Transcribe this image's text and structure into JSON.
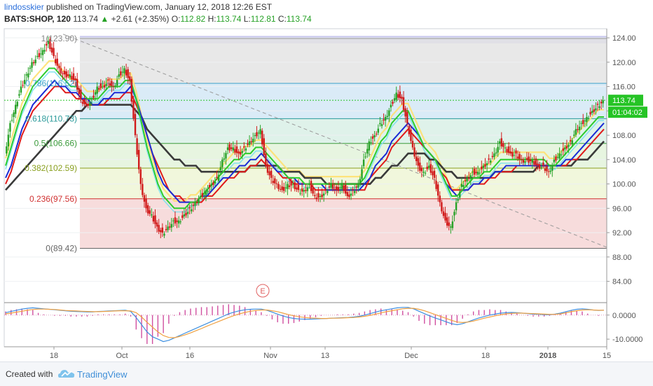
{
  "header": {
    "author": "lindosskier",
    "published_text": "published on TradingView.com, January 12, 2018 12:26 EST",
    "symbol": "BATS:SHOP, 120",
    "last": "113.74",
    "change": "+2.61 (+2.35%)",
    "o_label": "O:",
    "o_value": "112.82",
    "h_label": "H:",
    "h_value": "113.74",
    "l_label": "L:",
    "l_value": "112.81",
    "c_label": "C:",
    "c_value": "113.74"
  },
  "footer": {
    "created_with": "Created with",
    "brand": "TradingView"
  },
  "colors": {
    "up": "#26a126",
    "down": "#d11a1a",
    "ema_fast": "#2ecc2e",
    "ema_mid": "#1a2bd6",
    "ema_slow": "#e01b1b",
    "sma_long": "#3a3a3a",
    "ema_yellow": "#ffe070",
    "ema_cyan": "#7ee0f0"
  },
  "chart_data": [
    {
      "type": "candlestick",
      "price_axis": {
        "ylim": [
          80.5,
          125.5
        ],
        "ticks": [
          "124.00",
          "120.00",
          "116.00",
          "112.00",
          "108.00",
          "104.00",
          "100.00",
          "96.00",
          "92.00",
          "88.00",
          "84.00"
        ]
      },
      "time_axis": {
        "ticks": [
          "18",
          "Oct",
          "16",
          "Nov",
          "13",
          "Dec",
          "18",
          "2018",
          "15"
        ]
      },
      "last_price_label": "113.74",
      "countdown_label": "01:04:02",
      "earnings_marker": "E",
      "fibonacci": [
        {
          "label": "1(123.90)",
          "price": 123.9,
          "fill": "#dcdcdc"
        },
        {
          "label": "0.786(116.52)",
          "price": 116.52,
          "fill": "#cfe6f5",
          "color": "#3aa0c8"
        },
        {
          "label": "0.618(110.73)",
          "price": 110.73,
          "fill": "#d8efe8",
          "color": "#2a9a9a"
        },
        {
          "label": "0.5(106.66)",
          "price": 106.66,
          "fill": "#def2d8",
          "color": "#3a9a3a"
        },
        {
          "label": "0.382(102.59)",
          "price": 102.59,
          "fill": "#eef6d6",
          "color": "#8aa020"
        },
        {
          "label": "0.236(97.56)",
          "price": 97.56,
          "fill": "#f6d6d6",
          "color": "#d03030"
        },
        {
          "label": "0(89.42)",
          "price": 89.42,
          "color": "#666"
        }
      ],
      "trendline": {
        "from_price": 124.6,
        "to_price": 89.6
      },
      "close_path": [
        105,
        110,
        113,
        116,
        118,
        120,
        121,
        122,
        123.5,
        121,
        119,
        118,
        118,
        117,
        114,
        113,
        114,
        116,
        116,
        117,
        116,
        118,
        119,
        117,
        108,
        100,
        96,
        95,
        93,
        92,
        93,
        94,
        94,
        95,
        96,
        97,
        98,
        99,
        100,
        101,
        104,
        106,
        106,
        105,
        106,
        107,
        108,
        109,
        103,
        101,
        100,
        99,
        100,
        100,
        99,
        99,
        100,
        98,
        98,
        99,
        100,
        99,
        100,
        98,
        99,
        100,
        104,
        107,
        108,
        110,
        111,
        113,
        115,
        114,
        110,
        106,
        103,
        102,
        103,
        101,
        97,
        94,
        93,
        97,
        100,
        101,
        102,
        102,
        103,
        104,
        105,
        107,
        106,
        105,
        105,
        104,
        104,
        104,
        103,
        103,
        102,
        104,
        105,
        106,
        107,
        109,
        110,
        111,
        112,
        113,
        113.74
      ],
      "ema_fast": [
        103,
        106,
        109,
        112,
        114,
        116,
        117,
        118,
        119,
        119,
        118,
        117,
        116,
        116,
        115,
        114,
        114,
        114,
        115,
        116,
        116,
        116,
        117,
        117,
        114,
        110,
        106,
        103,
        100,
        98,
        97,
        96,
        96,
        96,
        97,
        97,
        98,
        99,
        100,
        101,
        102,
        103,
        104,
        104,
        105,
        105,
        106,
        106,
        105,
        104,
        103,
        102,
        101,
        101,
        101,
        100,
        100,
        100,
        100,
        100,
        100,
        100,
        100,
        100,
        100,
        100,
        101,
        103,
        105,
        107,
        108,
        110,
        111,
        112,
        112,
        110,
        108,
        106,
        105,
        104,
        102,
        100,
        98,
        98,
        99,
        100,
        101,
        101,
        102,
        102,
        103,
        104,
        104,
        104,
        104,
        104,
        104,
        104,
        104,
        104,
        103,
        103,
        104,
        105,
        106,
        107,
        108,
        109,
        110,
        111,
        111
      ],
      "ema_mid": [
        101,
        103,
        106,
        109,
        111,
        113,
        114,
        115,
        116,
        117,
        116,
        116,
        115,
        115,
        114,
        114,
        113,
        113,
        114,
        114,
        115,
        115,
        115,
        116,
        114,
        111,
        108,
        105,
        102,
        100,
        99,
        98,
        97,
        97,
        97,
        97,
        98,
        98,
        99,
        100,
        101,
        101,
        102,
        103,
        103,
        104,
        104,
        105,
        104,
        103,
        102,
        102,
        101,
        101,
        100,
        100,
        100,
        100,
        100,
        99,
        99,
        99,
        99,
        99,
        99,
        99,
        100,
        101,
        103,
        104,
        105,
        107,
        108,
        109,
        110,
        109,
        108,
        106,
        105,
        104,
        102,
        100,
        99,
        98,
        99,
        99,
        100,
        100,
        101,
        101,
        102,
        102,
        103,
        103,
        103,
        103,
        103,
        103,
        103,
        103,
        103,
        103,
        103,
        104,
        104,
        105,
        106,
        107,
        108,
        109,
        110
      ],
      "ema_slow": [
        100,
        102,
        105,
        108,
        110,
        112,
        113,
        114,
        115,
        116,
        116,
        115,
        115,
        114,
        114,
        113,
        113,
        113,
        113,
        114,
        114,
        114,
        115,
        115,
        113,
        111,
        108,
        105,
        103,
        101,
        99,
        98,
        98,
        97,
        97,
        97,
        97,
        98,
        98,
        99,
        100,
        101,
        101,
        102,
        102,
        103,
        103,
        104,
        103,
        103,
        102,
        101,
        101,
        100,
        100,
        100,
        100,
        99,
        99,
        99,
        99,
        99,
        99,
        99,
        99,
        99,
        99,
        101,
        102,
        103,
        104,
        106,
        107,
        108,
        109,
        108,
        107,
        106,
        105,
        104,
        102,
        101,
        99,
        99,
        99,
        99,
        100,
        100,
        100,
        101,
        101,
        102,
        102,
        102,
        103,
        103,
        103,
        103,
        103,
        103,
        103,
        103,
        103,
        103,
        104,
        104,
        105,
        106,
        107,
        108,
        109
      ],
      "sma_long": [
        99,
        100,
        101,
        102,
        103,
        104,
        105,
        106,
        107,
        108,
        109,
        110,
        111,
        112,
        112,
        113,
        113,
        113,
        113,
        113,
        113,
        113,
        113,
        113,
        112,
        111,
        109,
        108,
        107,
        106,
        105,
        104,
        104,
        103,
        103,
        103,
        102,
        102,
        102,
        102,
        102,
        102,
        102,
        102,
        102,
        103,
        103,
        103,
        103,
        103,
        103,
        102,
        102,
        102,
        102,
        101,
        101,
        101,
        101,
        100,
        100,
        100,
        100,
        100,
        100,
        100,
        100,
        100,
        101,
        101,
        102,
        103,
        103,
        104,
        105,
        105,
        105,
        105,
        104,
        104,
        103,
        102,
        102,
        101,
        101,
        101,
        101,
        101,
        101,
        101,
        102,
        102,
        102,
        102,
        102,
        102,
        102,
        102,
        103,
        103,
        103,
        103,
        103,
        103,
        103,
        104,
        104,
        104,
        105,
        106,
        107
      ]
    },
    {
      "type": "line",
      "name": "",
      "ylim": [
        -12,
        4
      ],
      "ticks": [
        "0.0000",
        "-10.0000"
      ],
      "macd": [
        1,
        1.5,
        2,
        2.5,
        2.8,
        3,
        2.8,
        2.6,
        2.4,
        2.2,
        2,
        1.8,
        1.6,
        1.5,
        1.4,
        1.3,
        1.3,
        1.5,
        1.6,
        1.7,
        1.8,
        1.9,
        2,
        1.5,
        -1,
        -4,
        -7,
        -9,
        -10,
        -11,
        -10.5,
        -9.5,
        -8.5,
        -7.5,
        -6.5,
        -5.5,
        -4.5,
        -3.5,
        -2.5,
        -1.5,
        -0.5,
        0.5,
        1.2,
        1.8,
        2.2,
        2.4,
        2.5,
        2.5,
        2,
        1.2,
        0.4,
        -0.4,
        -1,
        -1.4,
        -1.6,
        -1.7,
        -1.7,
        -1.6,
        -1.5,
        -1.4,
        -1.3,
        -1.2,
        -1.1,
        -1,
        -0.8,
        -0.5,
        0,
        0.6,
        1.2,
        1.8,
        2.2,
        2.6,
        3,
        3.2,
        3.2,
        2.6,
        1.6,
        0.6,
        -0.4,
        -1.2,
        -2,
        -2.8,
        -3.6,
        -4,
        -3.6,
        -2.8,
        -2,
        -1.2,
        -0.6,
        0,
        0.4,
        0.8,
        1,
        1.1,
        1,
        0.8,
        0.6,
        0.4,
        0.3,
        0.2,
        0.2,
        0.4,
        0.8,
        1.4,
        2,
        2.4,
        2.6,
        2.4,
        2.1,
        1.9,
        2
      ],
      "signal": [
        0.5,
        0.8,
        1.2,
        1.6,
        2,
        2.3,
        2.5,
        2.5,
        2.4,
        2.3,
        2.1,
        1.9,
        1.8,
        1.7,
        1.6,
        1.5,
        1.4,
        1.4,
        1.5,
        1.6,
        1.7,
        1.8,
        1.8,
        1.7,
        1,
        -0.8,
        -3,
        -5,
        -7,
        -8.5,
        -9.3,
        -9.4,
        -8.9,
        -8.2,
        -7.4,
        -6.5,
        -5.6,
        -4.6,
        -3.7,
        -2.8,
        -1.9,
        -1,
        -0.2,
        0.5,
        1.1,
        1.6,
        1.9,
        2.1,
        2.1,
        1.8,
        1.4,
        0.8,
        0.2,
        -0.3,
        -0.7,
        -1,
        -1.2,
        -1.3,
        -1.4,
        -1.4,
        -1.3,
        -1.3,
        -1.2,
        -1.1,
        -1,
        -0.8,
        -0.5,
        -0.1,
        0.4,
        0.9,
        1.4,
        1.8,
        2.2,
        2.6,
        2.8,
        2.8,
        2.4,
        1.8,
        1,
        0.2,
        -0.6,
        -1.4,
        -2.2,
        -2.9,
        -3.1,
        -2.9,
        -2.5,
        -1.9,
        -1.3,
        -0.8,
        -0.3,
        0.1,
        0.5,
        0.7,
        0.8,
        0.8,
        0.7,
        0.6,
        0.5,
        0.4,
        0.3,
        0.3,
        0.5,
        0.9,
        1.4,
        1.8,
        2.1,
        2.2,
        2.1,
        2,
        2
      ]
    }
  ]
}
